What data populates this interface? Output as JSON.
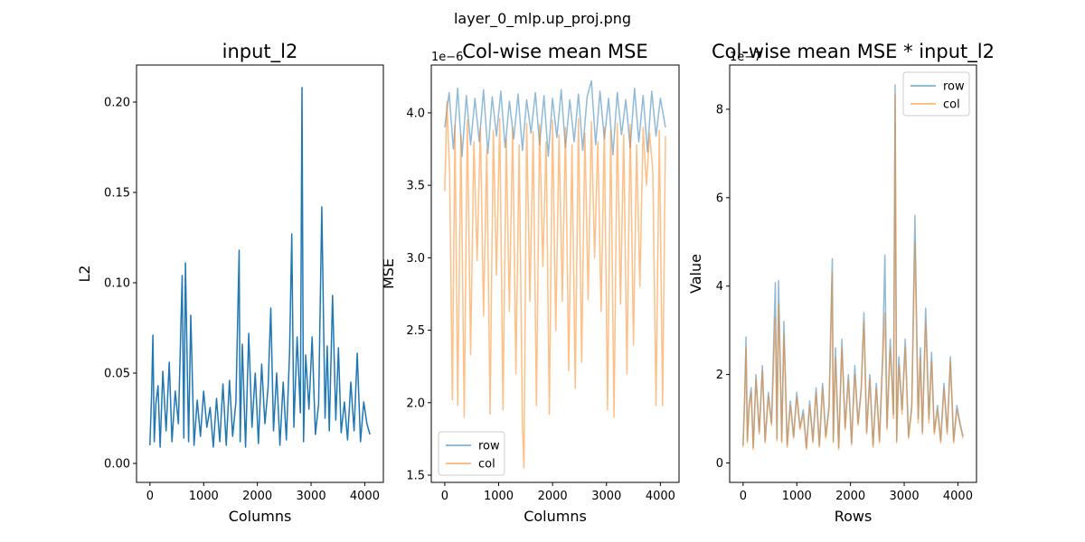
{
  "suptitle": "layer_0_mlp.up_proj.png",
  "colors": {
    "series_a": "#1f77b4",
    "series_b": "#ff7f0e"
  },
  "chart_data": [
    {
      "type": "line",
      "title": "input_l2",
      "xlabel": "Columns",
      "ylabel": "L2",
      "offset_text": "",
      "xlim": [
        -250,
        4346
      ],
      "ylim": [
        -0.0105,
        0.2205
      ],
      "xticks": [
        0,
        1000,
        2000,
        3000,
        4000
      ],
      "xtick_labels": [
        "0",
        "1000",
        "2000",
        "3000",
        "4000"
      ],
      "yticks": [
        0.0,
        0.05,
        0.1,
        0.15,
        0.2
      ],
      "ytick_labels": [
        "0.00",
        "0.05",
        "0.10",
        "0.15",
        "0.20"
      ],
      "grid": false,
      "legend": null,
      "series": [
        {
          "name": "",
          "color": "#1f77b4",
          "alpha": 1.0,
          "x": [
            0,
            30,
            55,
            80,
            110,
            150,
            190,
            240,
            300,
            360,
            410,
            470,
            530,
            600,
            630,
            660,
            700,
            720,
            760,
            820,
            880,
            940,
            1000,
            1060,
            1120,
            1180,
            1240,
            1300,
            1360,
            1420,
            1480,
            1540,
            1600,
            1660,
            1680,
            1720,
            1780,
            1840,
            1900,
            1960,
            2020,
            2080,
            2140,
            2200,
            2250,
            2300,
            2360,
            2420,
            2480,
            2540,
            2600,
            2640,
            2680,
            2740,
            2800,
            2830,
            2860,
            2900,
            2960,
            3020,
            3080,
            3140,
            3200,
            3260,
            3300,
            3340,
            3400,
            3460,
            3510,
            3560,
            3620,
            3680,
            3740,
            3800,
            3860,
            3920,
            3980,
            4040,
            4095
          ],
          "y": [
            0.01,
            0.037,
            0.071,
            0.012,
            0.033,
            0.043,
            0.009,
            0.051,
            0.018,
            0.056,
            0.012,
            0.04,
            0.022,
            0.104,
            0.014,
            0.111,
            0.045,
            0.012,
            0.082,
            0.01,
            0.035,
            0.015,
            0.04,
            0.02,
            0.031,
            0.009,
            0.036,
            0.012,
            0.044,
            0.01,
            0.046,
            0.015,
            0.034,
            0.118,
            0.012,
            0.066,
            0.009,
            0.072,
            0.02,
            0.05,
            0.011,
            0.055,
            0.022,
            0.042,
            0.086,
            0.018,
            0.05,
            0.01,
            0.045,
            0.013,
            0.062,
            0.127,
            0.02,
            0.07,
            0.028,
            0.208,
            0.012,
            0.06,
            0.03,
            0.07,
            0.016,
            0.033,
            0.142,
            0.025,
            0.065,
            0.018,
            0.093,
            0.024,
            0.064,
            0.017,
            0.034,
            0.013,
            0.045,
            0.018,
            0.061,
            0.012,
            0.034,
            0.022,
            0.016
          ]
        }
      ]
    },
    {
      "type": "line",
      "title": "Col-wise mean MSE",
      "xlabel": "Columns",
      "ylabel": "MSE",
      "offset_text": "1e−6",
      "xlim": [
        -250,
        4346
      ],
      "ylim": [
        1.45,
        4.33
      ],
      "xticks": [
        0,
        1000,
        2000,
        3000,
        4000
      ],
      "xtick_labels": [
        "0",
        "1000",
        "2000",
        "3000",
        "4000"
      ],
      "yticks": [
        1.5,
        2.0,
        2.5,
        3.0,
        3.5,
        4.0
      ],
      "ytick_labels": [
        "1.5",
        "2.0",
        "2.5",
        "3.0",
        "3.5",
        "4.0"
      ],
      "grid": false,
      "legend": {
        "position": "lower-left",
        "entries": [
          "row",
          "col"
        ]
      },
      "series": [
        {
          "name": "row",
          "color": "#1f77b4",
          "alpha": 0.5,
          "x": [
            0,
            80,
            160,
            240,
            320,
            400,
            480,
            560,
            640,
            720,
            800,
            880,
            960,
            1040,
            1120,
            1200,
            1280,
            1360,
            1440,
            1520,
            1600,
            1680,
            1760,
            1840,
            1920,
            2000,
            2080,
            2160,
            2240,
            2320,
            2400,
            2480,
            2560,
            2640,
            2720,
            2800,
            2880,
            2960,
            3040,
            3120,
            3200,
            3280,
            3360,
            3440,
            3520,
            3600,
            3680,
            3760,
            3840,
            3920,
            4000,
            4095
          ],
          "y": [
            3.9,
            4.14,
            3.75,
            4.17,
            3.7,
            4.12,
            3.78,
            4.1,
            3.8,
            4.16,
            3.72,
            4.11,
            3.84,
            4.15,
            3.76,
            4.08,
            3.82,
            4.13,
            3.74,
            4.09,
            3.86,
            4.14,
            3.78,
            4.12,
            3.7,
            4.1,
            3.83,
            4.16,
            3.76,
            4.09,
            3.8,
            4.13,
            3.74,
            4.11,
            4.22,
            3.78,
            4.15,
            3.82,
            4.1,
            3.71,
            4.14,
            3.85,
            4.09,
            3.76,
            4.17,
            3.8,
            4.12,
            3.73,
            4.15,
            3.84,
            4.1,
            3.9
          ]
        },
        {
          "name": "col",
          "color": "#ff7f0e",
          "alpha": 0.5,
          "x": [
            0,
            40,
            90,
            140,
            190,
            240,
            300,
            360,
            420,
            480,
            540,
            600,
            660,
            720,
            780,
            840,
            900,
            960,
            1020,
            1080,
            1140,
            1200,
            1260,
            1320,
            1380,
            1440,
            1470,
            1520,
            1580,
            1640,
            1700,
            1760,
            1820,
            1880,
            1940,
            2000,
            2060,
            2120,
            2180,
            2240,
            2300,
            2360,
            2420,
            2480,
            2540,
            2600,
            2660,
            2720,
            2780,
            2840,
            2900,
            2960,
            3020,
            3080,
            3140,
            3200,
            3260,
            3320,
            3380,
            3440,
            3500,
            3560,
            3620,
            3680,
            3740,
            3800,
            3860,
            3920,
            3980,
            4040,
            4095
          ],
          "y": [
            3.46,
            4.08,
            3.58,
            2.02,
            3.92,
            1.98,
            3.85,
            1.9,
            3.95,
            2.33,
            3.8,
            2.98,
            3.9,
            2.6,
            3.75,
            1.92,
            3.88,
            2.88,
            3.96,
            1.95,
            3.82,
            2.63,
            3.9,
            2.2,
            3.78,
            1.85,
            1.55,
            3.93,
            2.7,
            3.87,
            1.98,
            3.92,
            2.94,
            3.8,
            1.92,
            3.95,
            2.5,
            3.85,
            2.7,
            3.9,
            2.22,
            3.78,
            2.1,
            3.96,
            2.28,
            3.86,
            2.71,
            3.94,
            3.0,
            3.8,
            2.63,
            3.9,
            1.95,
            3.88,
            1.9,
            3.93,
            2.68,
            3.85,
            2.2,
            3.92,
            2.4,
            3.78,
            2.8,
            3.9,
            3.5,
            3.86,
            3.6,
            1.98,
            3.88,
            1.98,
            3.84
          ]
        }
      ]
    },
    {
      "type": "line",
      "title": "Col-wise mean MSE * input_l2",
      "xlabel": "Rows",
      "ylabel": "Value",
      "offset_text": "1e−7",
      "xlim": [
        -250,
        4346
      ],
      "ylim": [
        -0.44,
        9.0
      ],
      "xticks": [
        0,
        1000,
        2000,
        3000,
        4000
      ],
      "xtick_labels": [
        "0",
        "1000",
        "2000",
        "3000",
        "4000"
      ],
      "yticks": [
        0,
        2,
        4,
        6,
        8
      ],
      "ytick_labels": [
        "0",
        "2",
        "4",
        "6",
        "8"
      ],
      "grid": false,
      "legend": {
        "position": "upper-right",
        "entries": [
          "row",
          "col"
        ]
      },
      "series": [
        {
          "name": "row",
          "color": "#1f77b4",
          "alpha": 0.5,
          "x": [
            0,
            30,
            55,
            80,
            110,
            150,
            190,
            240,
            300,
            360,
            410,
            470,
            530,
            600,
            630,
            660,
            700,
            720,
            760,
            820,
            880,
            940,
            1000,
            1060,
            1120,
            1180,
            1240,
            1300,
            1360,
            1420,
            1480,
            1540,
            1600,
            1660,
            1680,
            1720,
            1780,
            1840,
            1900,
            1960,
            2020,
            2080,
            2140,
            2200,
            2250,
            2300,
            2360,
            2420,
            2480,
            2540,
            2600,
            2640,
            2680,
            2740,
            2800,
            2830,
            2860,
            2900,
            2960,
            3020,
            3080,
            3140,
            3200,
            3260,
            3300,
            3340,
            3400,
            3460,
            3510,
            3560,
            3620,
            3680,
            3740,
            3800,
            3860,
            3920,
            3980,
            4040,
            4095
          ],
          "y": [
            0.4,
            1.5,
            2.85,
            0.5,
            1.3,
            1.7,
            0.35,
            2.0,
            0.7,
            2.2,
            0.5,
            1.6,
            0.9,
            4.08,
            0.55,
            4.12,
            1.8,
            0.5,
            3.2,
            0.4,
            1.4,
            0.6,
            1.6,
            0.8,
            1.2,
            0.35,
            1.4,
            0.5,
            1.7,
            0.4,
            1.8,
            0.6,
            1.3,
            4.62,
            0.5,
            2.6,
            0.35,
            2.8,
            0.8,
            2.0,
            0.45,
            2.2,
            0.9,
            1.7,
            3.4,
            0.7,
            2.0,
            0.4,
            1.8,
            0.5,
            2.5,
            4.7,
            0.8,
            2.8,
            1.1,
            8.55,
            0.5,
            2.4,
            1.2,
            2.8,
            0.6,
            1.3,
            5.6,
            1.0,
            2.6,
            0.7,
            3.5,
            1.0,
            2.5,
            0.7,
            1.3,
            0.5,
            1.8,
            0.7,
            2.4,
            0.5,
            1.3,
            0.9,
            0.6
          ]
        },
        {
          "name": "col",
          "color": "#ff7f0e",
          "alpha": 0.5,
          "x": [
            0,
            30,
            55,
            80,
            110,
            150,
            190,
            240,
            300,
            360,
            410,
            470,
            530,
            600,
            630,
            660,
            700,
            720,
            760,
            820,
            880,
            940,
            1000,
            1060,
            1120,
            1180,
            1240,
            1300,
            1360,
            1420,
            1480,
            1540,
            1600,
            1660,
            1680,
            1720,
            1780,
            1840,
            1900,
            1960,
            2020,
            2080,
            2140,
            2200,
            2250,
            2300,
            2360,
            2420,
            2480,
            2540,
            2600,
            2640,
            2680,
            2740,
            2800,
            2830,
            2860,
            2900,
            2960,
            3020,
            3080,
            3140,
            3200,
            3260,
            3300,
            3340,
            3400,
            3460,
            3510,
            3560,
            3620,
            3680,
            3740,
            3800,
            3860,
            3920,
            3980,
            4040,
            4095
          ],
          "y": [
            0.35,
            1.4,
            2.6,
            0.45,
            1.2,
            1.6,
            0.3,
            1.9,
            0.65,
            2.1,
            0.45,
            1.5,
            0.85,
            3.3,
            0.5,
            3.6,
            1.7,
            0.45,
            2.9,
            0.35,
            1.3,
            0.55,
            1.5,
            0.75,
            1.1,
            0.3,
            1.3,
            0.45,
            1.6,
            0.35,
            1.7,
            0.55,
            1.2,
            4.3,
            0.45,
            2.4,
            0.3,
            2.6,
            0.75,
            1.9,
            0.4,
            2.0,
            0.85,
            1.6,
            3.2,
            0.65,
            1.9,
            0.35,
            1.7,
            0.45,
            2.3,
            3.4,
            0.75,
            2.6,
            1.0,
            8.35,
            0.45,
            2.2,
            1.1,
            2.6,
            0.55,
            1.2,
            5.0,
            0.9,
            2.4,
            0.65,
            3.2,
            0.9,
            2.3,
            0.65,
            1.2,
            0.45,
            1.7,
            0.65,
            2.3,
            0.45,
            1.2,
            0.85,
            0.55
          ]
        }
      ]
    }
  ]
}
